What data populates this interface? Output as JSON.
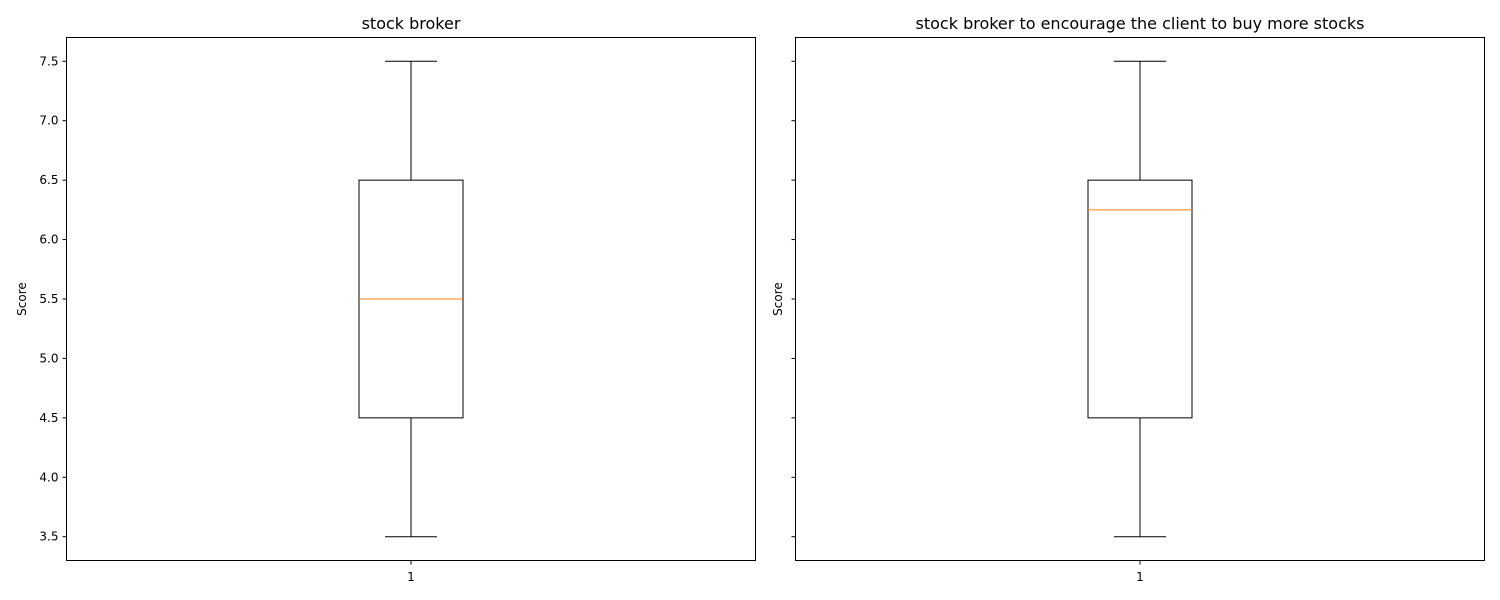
{
  "chart_data": [
    {
      "type": "box",
      "title": "stock broker",
      "ylabel": "Score",
      "xlabel": "",
      "categories": [
        "1"
      ],
      "ylim": [
        3.3,
        7.7
      ],
      "yticks": [
        "3.5",
        "4.0",
        "4.5",
        "5.0",
        "5.5",
        "6.0",
        "6.5",
        "7.0",
        "7.5"
      ],
      "show_ytick_labels": true,
      "grid": false,
      "boxes": [
        {
          "whisker_low": 3.5,
          "q1": 4.5,
          "median": 5.5,
          "q3": 6.5,
          "whisker_high": 7.5
        }
      ]
    },
    {
      "type": "box",
      "title": "stock broker to encourage the client to buy more stocks",
      "ylabel": "Score",
      "xlabel": "",
      "categories": [
        "1"
      ],
      "ylim": [
        3.3,
        7.7
      ],
      "yticks": [
        "3.5",
        "4.0",
        "4.5",
        "5.0",
        "5.5",
        "6.0",
        "6.5",
        "7.0",
        "7.5"
      ],
      "show_ytick_labels": false,
      "grid": false,
      "boxes": [
        {
          "whisker_low": 3.5,
          "q1": 4.5,
          "median": 6.25,
          "q3": 6.5,
          "whisker_high": 7.5
        }
      ]
    }
  ],
  "colors": {
    "box": "#000000",
    "median": "#ff7f0e",
    "background": "#ffffff"
  }
}
